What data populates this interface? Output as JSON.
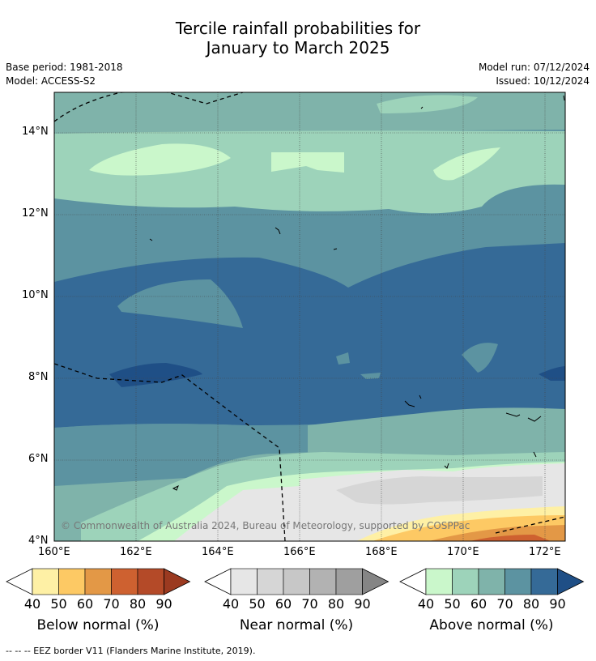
{
  "title_line1": "Tercile rainfall probabilities for",
  "title_line2": "January to March 2025",
  "base_period": "Base period: 1981-2018",
  "model": "Model: ACCESS-S2",
  "model_run": "Model run: 07/12/2024",
  "issued": "Issued: 10/12/2024",
  "copyright": "© Commonwealth of Australia 2024, Bureau of Meteorology, supported by COSPPac",
  "lat_labels": [
    "14°N",
    "12°N",
    "10°N",
    "8°N",
    "6°N",
    "4°N"
  ],
  "lon_labels": [
    "160°E",
    "162°E",
    "164°E",
    "166°E",
    "168°E",
    "170°E",
    "172°E"
  ],
  "colorbars": [
    {
      "title": "Below normal (%)",
      "ticks": [
        "40",
        "50",
        "60",
        "70",
        "80",
        "90"
      ],
      "colors": [
        "#fef0a5",
        "#fdc964",
        "#e39846",
        "#ce6130",
        "#b44a28",
        "#9b3a20"
      ]
    },
    {
      "title": "Near normal (%)",
      "ticks": [
        "40",
        "50",
        "60",
        "70",
        "80",
        "90"
      ],
      "colors": [
        "#e6e6e6",
        "#d6d6d6",
        "#c7c7c7",
        "#b2b2b2",
        "#9f9f9f",
        "#858585"
      ]
    },
    {
      "title": "Above normal (%)",
      "ticks": [
        "40",
        "50",
        "60",
        "70",
        "80",
        "90"
      ],
      "colors": [
        "#caf7cb",
        "#9dd3ba",
        "#7fb3aa",
        "#5c93a1",
        "#356a97",
        "#1f4f86"
      ]
    }
  ],
  "footer": "-- -- -- EEZ border V11 (Flanders Marine Institute, 2019)."
}
